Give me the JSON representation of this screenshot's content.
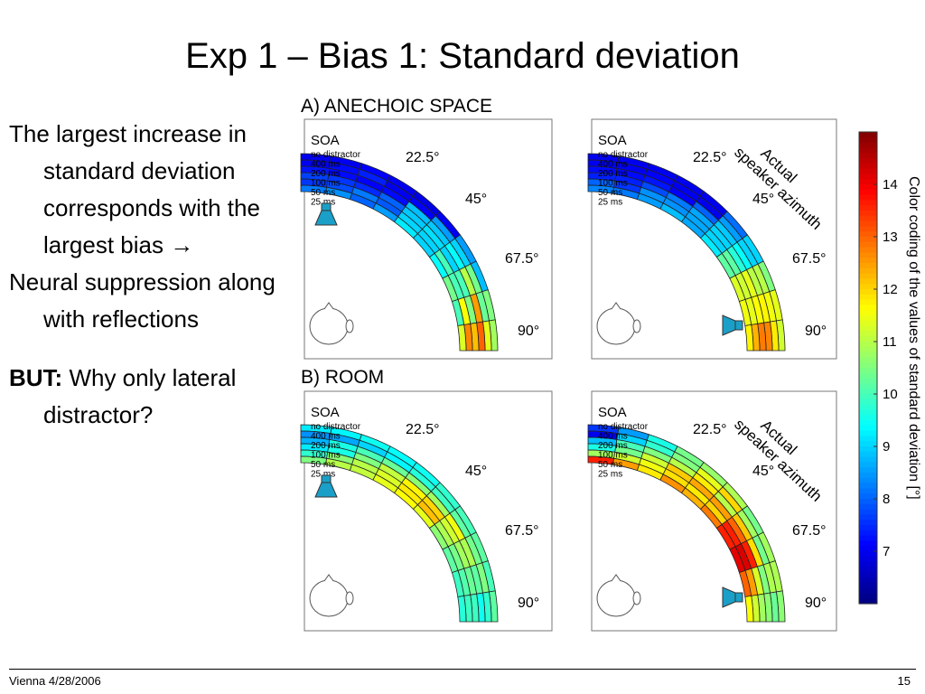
{
  "slide": {
    "title": "Exp 1 – Bias 1: Standard deviation",
    "bullets": [
      {
        "text": "The largest increase in standard deviation corresponds with the largest bias ",
        "arrow": "→"
      },
      {
        "text": "Neural suppression along with reflections"
      },
      {
        "bold": "BUT:",
        "text": " Why only lateral distractor?"
      }
    ],
    "footer_left": "Vienna 4/28/2006",
    "page_number": "15"
  },
  "chart_data": {
    "type": "heatmap",
    "section_labels": [
      "A) ANECHOIC SPACE",
      "B) ROOM"
    ],
    "row_labels_title": "SOA",
    "row_labels": [
      "no distractor",
      "400 ms",
      "200 ms",
      "100 ms",
      "50 ms",
      "25 ms"
    ],
    "azimuth_labels": [
      "22.5°",
      "45°",
      "67.5°",
      "90°"
    ],
    "actual_azimuth_label": "Actual\nspeaker azimuth",
    "colorbar": {
      "label": "Color coding of the values of standard deviation [°]",
      "range": [
        6,
        15
      ],
      "ticks": [
        7,
        8,
        9,
        10,
        11,
        12,
        13,
        14
      ]
    },
    "panels": [
      {
        "section": "A) ANECHOIC SPACE",
        "distractor": "frontal",
        "annotation": false,
        "values": [
          [
            7.0,
            7.0,
            7.1,
            7.0,
            6.9,
            7.0,
            8.5,
            8.8,
            10.5,
            10.8
          ],
          [
            7.0,
            7.2,
            7.4,
            7.0,
            7.1,
            8.5,
            9.0,
            10.4,
            10.3,
            11.4
          ],
          [
            7.3,
            7.2,
            7.1,
            7.2,
            8.8,
            8.9,
            9.4,
            11.0,
            12.5,
            13.0
          ],
          [
            7.7,
            7.6,
            7.5,
            8.0,
            8.9,
            9.1,
            9.0,
            10.0,
            10.5,
            12.2
          ],
          [
            7.6,
            7.8,
            8.2,
            7.9,
            9.0,
            9.0,
            10.0,
            10.0,
            11.6,
            12.7
          ],
          [
            8.2,
            8.4,
            8.0,
            8.5,
            9.2,
            9.0,
            9.4,
            10.4,
            10.0,
            11.3
          ]
        ]
      },
      {
        "section": "A) ANECHOIC SPACE",
        "distractor": "lateral",
        "annotation": true,
        "values": [
          [
            7.0,
            7.0,
            7.0,
            7.0,
            7.0,
            8.1,
            9.0,
            10.5,
            11.4,
            11.2
          ],
          [
            7.0,
            7.0,
            7.1,
            7.0,
            7.0,
            8.5,
            9.0,
            11.0,
            11.5,
            11.8
          ],
          [
            7.2,
            7.2,
            7.3,
            7.1,
            8.0,
            8.9,
            9.4,
            11.0,
            11.7,
            12.7
          ],
          [
            7.4,
            7.4,
            7.8,
            8.2,
            8.6,
            9.0,
            9.7,
            11.4,
            11.6,
            12.8
          ],
          [
            8.0,
            7.6,
            8.4,
            8.4,
            8.6,
            9.0,
            10.2,
            11.2,
            11.4,
            12.3
          ],
          [
            8.3,
            8.2,
            8.5,
            8.8,
            8.6,
            9.2,
            10.2,
            11.3,
            11.5,
            11.7
          ]
        ]
      },
      {
        "section": "B) ROOM",
        "distractor": "frontal",
        "annotation": false,
        "values": [
          [
            9.2,
            9.3,
            9.5,
            9.4,
            9.5,
            9.8,
            10.0,
            10.2,
            10.0,
            10.2
          ],
          [
            8.4,
            8.6,
            9.0,
            9.3,
            9.7,
            9.9,
            10.2,
            10.4,
            10.5,
            9.8
          ],
          [
            8.7,
            9.6,
            10.0,
            10.3,
            10.6,
            10.8,
            11.5,
            10.9,
            10.2,
            9.5
          ],
          [
            9.2,
            9.6,
            10.5,
            11.1,
            11.7,
            12.0,
            11.2,
            10.8,
            10.3,
            9.9
          ],
          [
            9.8,
            10.6,
            11.0,
            11.3,
            11.8,
            12.2,
            10.9,
            10.4,
            10.1,
            9.9
          ],
          [
            10.5,
            11.0,
            11.1,
            11.4,
            11.6,
            11.4,
            10.6,
            10.2,
            9.9,
            9.7
          ]
        ]
      },
      {
        "section": "B) ROOM",
        "distractor": "lateral",
        "annotation": true,
        "values": [
          [
            7.6,
            8.5,
            9.6,
            10.4,
            10.7,
            10.9,
            10.4,
            10.8,
            10.9,
            10.6
          ],
          [
            7.0,
            9.0,
            9.8,
            10.5,
            11.4,
            12.0,
            10.8,
            10.4,
            10.9,
            10.3
          ],
          [
            8.8,
            10.0,
            10.5,
            11.0,
            11.8,
            11.0,
            12.1,
            11.9,
            10.5,
            10.6
          ],
          [
            9.6,
            10.4,
            11.2,
            12.1,
            12.4,
            12.5,
            13.0,
            13.6,
            11.3,
            10.8
          ],
          [
            10.8,
            11.2,
            11.5,
            11.9,
            11.8,
            12.0,
            13.6,
            14.2,
            12.5,
            11.2
          ],
          [
            13.6,
            12.5,
            11.8,
            12.6,
            12.3,
            12.8,
            13.6,
            14.1,
            13.0,
            11.6
          ]
        ]
      }
    ]
  }
}
